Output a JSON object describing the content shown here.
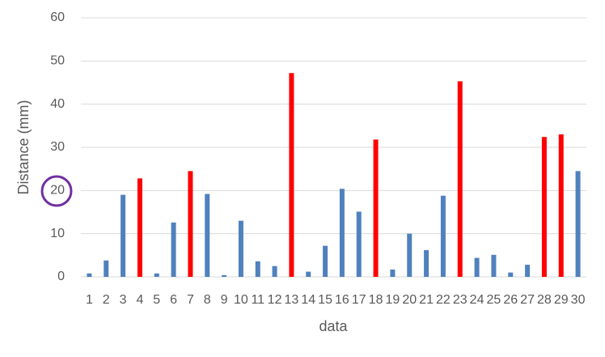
{
  "chart_data": {
    "type": "bar",
    "x_label": "data",
    "y_label": "Distance (mm)",
    "categories": [
      "1",
      "2",
      "3",
      "4",
      "5",
      "6",
      "7",
      "8",
      "9",
      "10",
      "11",
      "12",
      "13",
      "14",
      "15",
      "16",
      "17",
      "18",
      "19",
      "20",
      "21",
      "22",
      "23",
      "24",
      "25",
      "26",
      "27",
      "28",
      "29",
      "30"
    ],
    "values": [
      0.8,
      3.8,
      19,
      22.8,
      0.8,
      12.6,
      24.5,
      19.2,
      0.4,
      13,
      3.6,
      2.5,
      47.2,
      1.2,
      7.2,
      20.4,
      15.1,
      31.8,
      1.7,
      10,
      6.2,
      18.8,
      45.3,
      4.4,
      5.1,
      1,
      2.8,
      32.4,
      33,
      24.5
    ],
    "colors": [
      "#4f81bd",
      "#4f81bd",
      "#4f81bd",
      "#ff0000",
      "#4f81bd",
      "#4f81bd",
      "#ff0000",
      "#4f81bd",
      "#4f81bd",
      "#4f81bd",
      "#4f81bd",
      "#4f81bd",
      "#ff0000",
      "#4f81bd",
      "#4f81bd",
      "#4f81bd",
      "#4f81bd",
      "#ff0000",
      "#4f81bd",
      "#4f81bd",
      "#4f81bd",
      "#4f81bd",
      "#ff0000",
      "#4f81bd",
      "#4f81bd",
      "#4f81bd",
      "#4f81bd",
      "#ff0000",
      "#ff0000",
      "#4f81bd"
    ],
    "ylim": [
      0,
      60
    ],
    "yticks": [
      0,
      10,
      20,
      30,
      40,
      50,
      60
    ],
    "grid": true
  }
}
